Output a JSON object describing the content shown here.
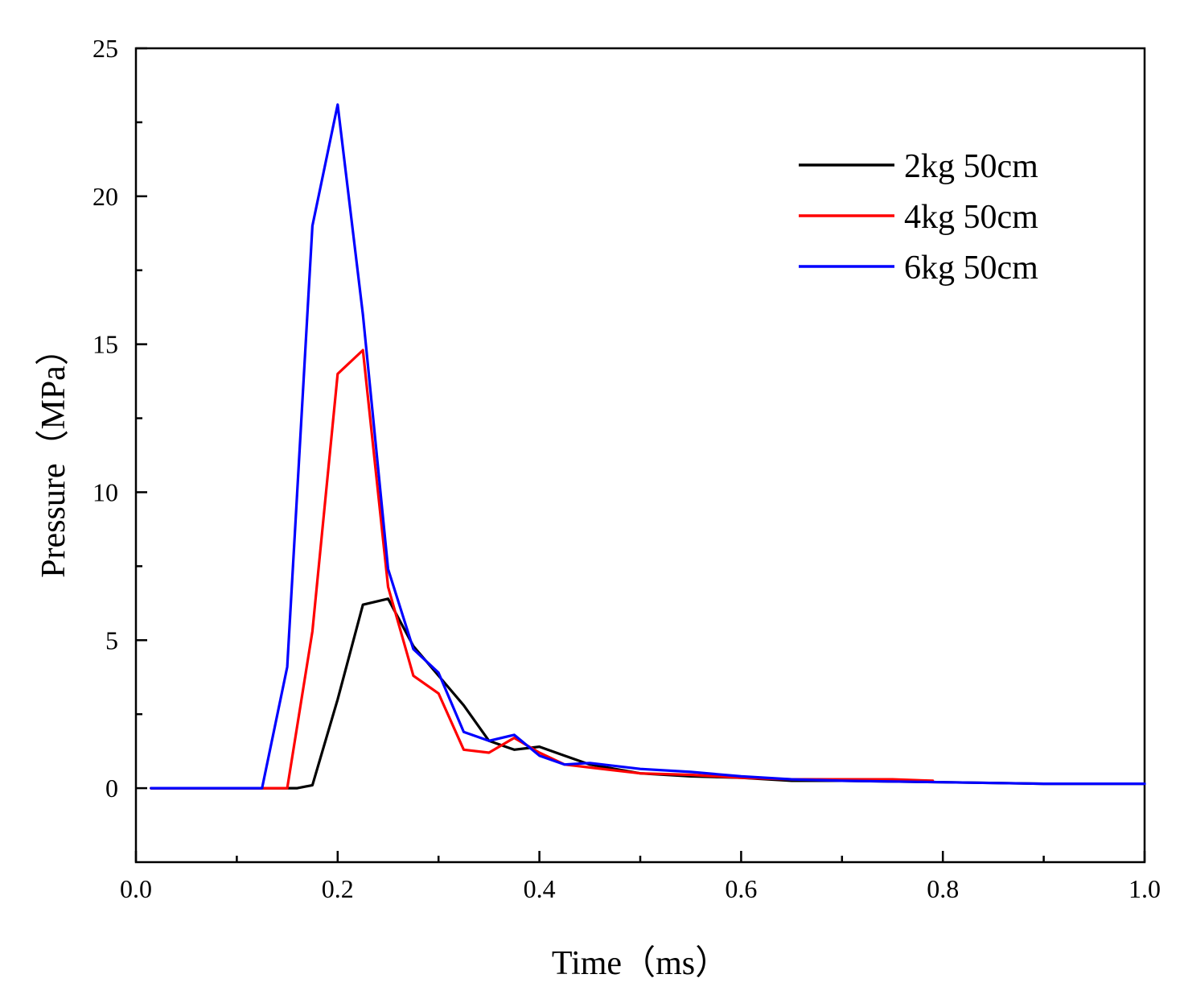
{
  "chart_data": {
    "type": "line",
    "title": "",
    "xlabel": "Time（ms）",
    "ylabel": "Pressure（MPa）",
    "xlim": [
      0.0,
      1.0
    ],
    "ylim": [
      -2.5,
      25
    ],
    "xticks": [
      {
        "value": 0.0,
        "label": "0.0"
      },
      {
        "value": 0.2,
        "label": "0.2"
      },
      {
        "value": 0.4,
        "label": "0.4"
      },
      {
        "value": 0.6,
        "label": "0.6"
      },
      {
        "value": 0.8,
        "label": "0.8"
      },
      {
        "value": 1.0,
        "label": "1.0"
      }
    ],
    "yticks": [
      {
        "value": 0,
        "label": "0"
      },
      {
        "value": 5,
        "label": "5"
      },
      {
        "value": 10,
        "label": "10"
      },
      {
        "value": 15,
        "label": "15"
      },
      {
        "value": 20,
        "label": "20"
      },
      {
        "value": 25,
        "label": "25"
      }
    ],
    "grid": false,
    "legend_position": "top-right",
    "series": [
      {
        "name": "2kg 50cm",
        "color": "#000000",
        "x": [
          0.015,
          0.05,
          0.1,
          0.15,
          0.16,
          0.175,
          0.2,
          0.225,
          0.25,
          0.275,
          0.3,
          0.325,
          0.35,
          0.375,
          0.4,
          0.425,
          0.45,
          0.5,
          0.55,
          0.6,
          0.65,
          0.7,
          0.8,
          0.9,
          1.0
        ],
        "y": [
          0,
          0,
          0,
          0,
          0,
          0.1,
          3.0,
          6.2,
          6.4,
          4.8,
          3.8,
          2.8,
          1.6,
          1.3,
          1.4,
          1.1,
          0.8,
          0.5,
          0.4,
          0.35,
          0.25,
          0.25,
          0.2,
          0.15,
          0.15
        ]
      },
      {
        "name": "4kg 50cm",
        "color": "#ff0000",
        "x": [
          0.015,
          0.05,
          0.1,
          0.15,
          0.175,
          0.2,
          0.225,
          0.25,
          0.275,
          0.3,
          0.325,
          0.35,
          0.375,
          0.4,
          0.425,
          0.45,
          0.5,
          0.55,
          0.6,
          0.65,
          0.7,
          0.75,
          0.79
        ],
        "y": [
          0,
          0,
          0,
          0,
          5.3,
          14.0,
          14.8,
          6.8,
          3.8,
          3.2,
          1.3,
          1.2,
          1.7,
          1.2,
          0.8,
          0.7,
          0.5,
          0.45,
          0.35,
          0.3,
          0.3,
          0.3,
          0.25
        ]
      },
      {
        "name": "6kg 50cm",
        "color": "#0000ff",
        "x": [
          0.015,
          0.05,
          0.1,
          0.125,
          0.15,
          0.175,
          0.2,
          0.225,
          0.25,
          0.275,
          0.3,
          0.325,
          0.35,
          0.375,
          0.4,
          0.425,
          0.45,
          0.5,
          0.55,
          0.6,
          0.65,
          0.7,
          0.8,
          0.9,
          1.0
        ],
        "y": [
          0,
          0,
          0,
          0,
          4.1,
          19.0,
          23.1,
          16.0,
          7.4,
          4.7,
          3.9,
          1.9,
          1.6,
          1.8,
          1.1,
          0.8,
          0.85,
          0.65,
          0.55,
          0.4,
          0.3,
          0.25,
          0.2,
          0.15,
          0.15
        ]
      }
    ]
  }
}
